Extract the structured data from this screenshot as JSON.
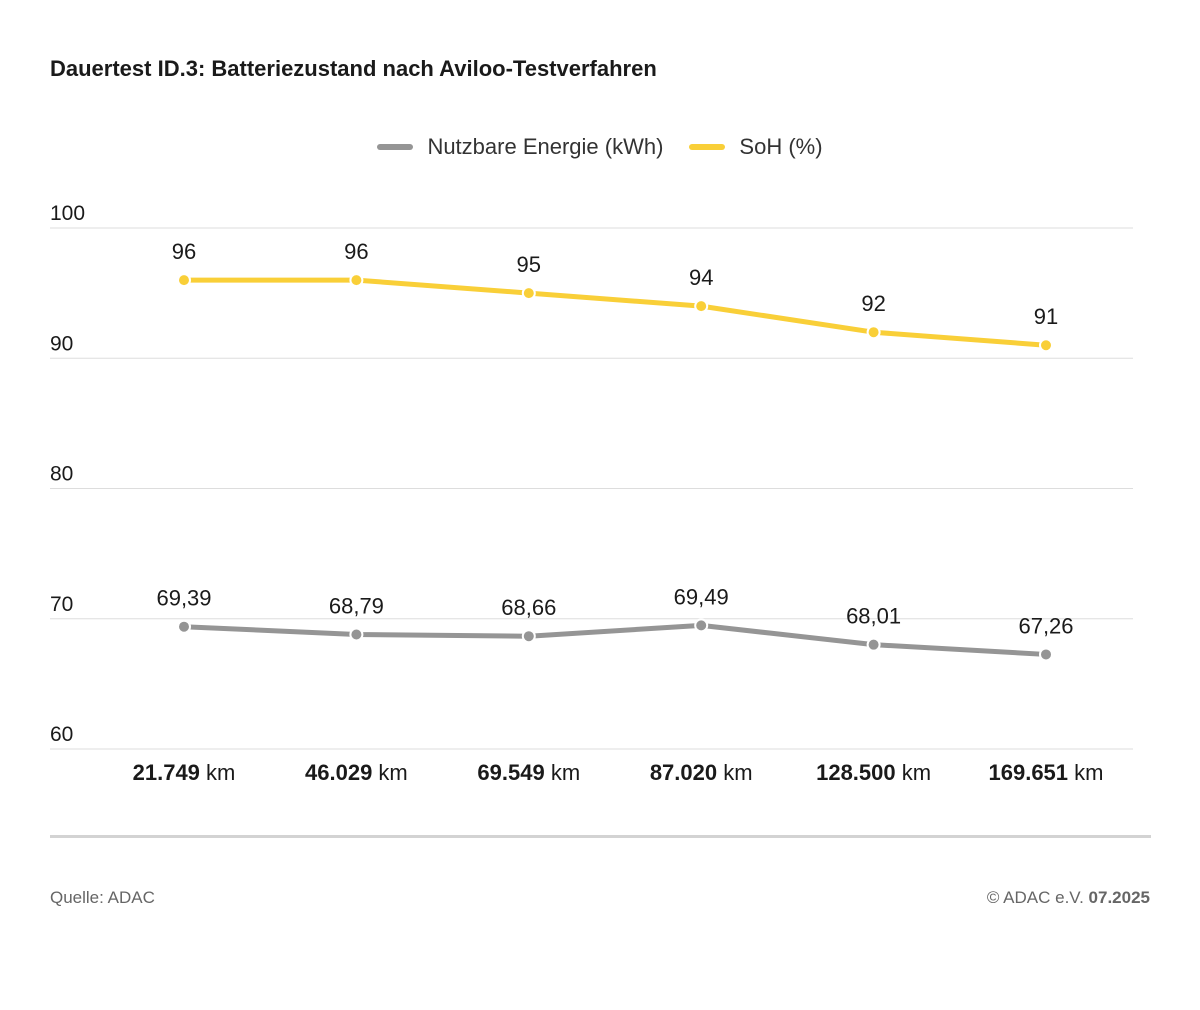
{
  "chart_data": {
    "type": "line",
    "title": "Dauertest ID.3: Batteriezustand nach Aviloo-Testverfahren",
    "categories": [
      "21.749 km",
      "46.029 km",
      "69.549 km",
      "87.020 km",
      "128.500 km",
      "169.651 km"
    ],
    "category_values": [
      "21.749",
      "46.029",
      "69.549",
      "87.020",
      "128.500",
      "169.651"
    ],
    "category_unit": "km",
    "series": [
      {
        "name": "Nutzbare Energie (kWh)",
        "color": "#959595",
        "values": [
          69.39,
          68.79,
          68.66,
          69.49,
          68.01,
          67.26
        ],
        "labels": [
          "69,39",
          "68,79",
          "68,66",
          "69,49",
          "68,01",
          "67,26"
        ]
      },
      {
        "name": "SoH (%)",
        "color": "#f9cf38",
        "values": [
          96,
          96,
          95,
          94,
          92,
          91
        ],
        "labels": [
          "96",
          "96",
          "95",
          "94",
          "92",
          "91"
        ]
      }
    ],
    "ylim": [
      60,
      100
    ],
    "yticks": [
      100,
      90,
      80,
      70,
      60
    ],
    "ytick_labels": [
      "100",
      "90",
      "80",
      "70",
      "60"
    ],
    "grid": true,
    "legend_position": "top-center",
    "xlabel": "",
    "ylabel": ""
  },
  "footer": {
    "source": "Quelle: ADAC",
    "copyright": "© ADAC e.V.",
    "date": "07.2025"
  }
}
